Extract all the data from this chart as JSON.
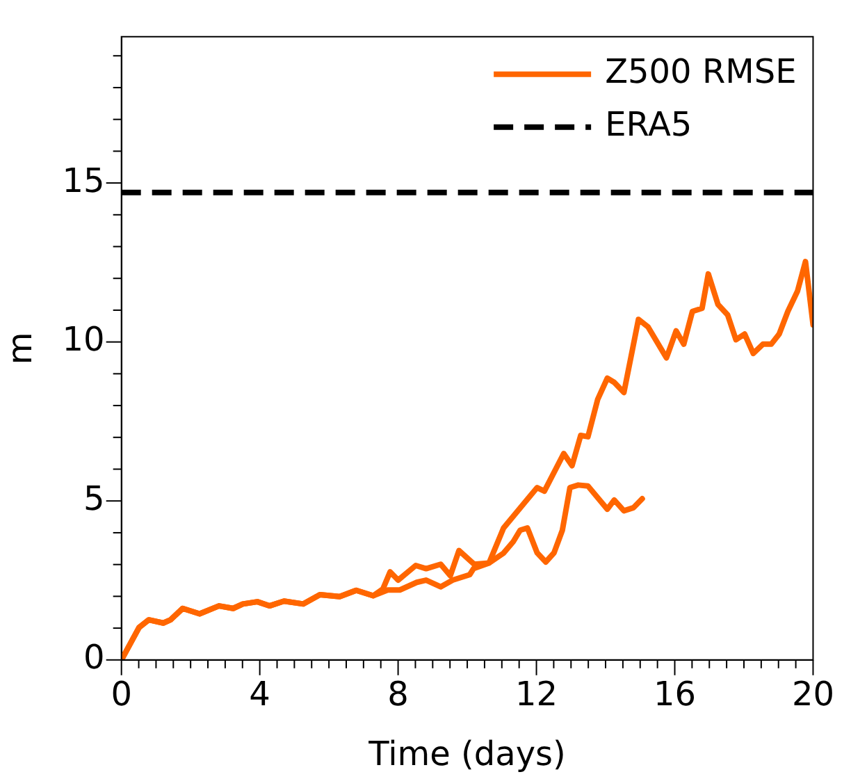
{
  "chart_data": {
    "type": "line",
    "xlabel": "Time (days)",
    "ylabel": "m",
    "xlim": [
      0,
      20
    ],
    "ylim": [
      0,
      19.6
    ],
    "xticks": [
      0,
      {
        "value": 0.5,
        "label": null
      },
      {
        "value": 1,
        "label": null
      },
      {
        "value": 1.5,
        "label": null
      },
      {
        "value": 2,
        "label": null
      },
      {
        "value": 2.5,
        "label": null
      },
      {
        "value": 3,
        "label": null
      },
      {
        "value": 3.5,
        "label": null
      },
      4,
      {
        "value": 4.5,
        "label": null
      },
      {
        "value": 5,
        "label": null
      },
      {
        "value": 5.5,
        "label": null
      },
      {
        "value": 6,
        "label": null
      },
      {
        "value": 6.5,
        "label": null
      },
      {
        "value": 7,
        "label": null
      },
      {
        "value": 7.5,
        "label": null
      },
      8,
      {
        "value": 8.5,
        "label": null
      },
      {
        "value": 9,
        "label": null
      },
      {
        "value": 9.5,
        "label": null
      },
      {
        "value": 10,
        "label": null
      },
      {
        "value": 10.5,
        "label": null
      },
      {
        "value": 11,
        "label": null
      },
      {
        "value": 11.5,
        "label": null
      },
      12,
      {
        "value": 12.5,
        "label": null
      },
      {
        "value": 13,
        "label": null
      },
      {
        "value": 13.5,
        "label": null
      },
      {
        "value": 14,
        "label": null
      },
      {
        "value": 14.5,
        "label": null
      },
      {
        "value": 15,
        "label": null
      },
      {
        "value": 15.5,
        "label": null
      },
      16,
      {
        "value": 16.5,
        "label": null
      },
      {
        "value": 17,
        "label": null
      },
      {
        "value": 17.5,
        "label": null
      },
      {
        "value": 18,
        "label": null
      },
      {
        "value": 18.5,
        "label": null
      },
      {
        "value": 19,
        "label": null
      },
      {
        "value": 19.5,
        "label": null
      },
      20
    ],
    "yticks": [
      0,
      {
        "value": 1,
        "label": null
      },
      {
        "value": 2,
        "label": null
      },
      {
        "value": 3,
        "label": null
      },
      {
        "value": 4,
        "label": null
      },
      5,
      {
        "value": 6,
        "label": null
      },
      {
        "value": 7,
        "label": null
      },
      {
        "value": 8,
        "label": null
      },
      {
        "value": 9,
        "label": null
      },
      10,
      {
        "value": 11,
        "label": null
      },
      {
        "value": 12,
        "label": null
      },
      {
        "value": 13,
        "label": null
      },
      {
        "value": 14,
        "label": null
      },
      15,
      {
        "value": 16,
        "label": null
      },
      {
        "value": 17,
        "label": null
      },
      {
        "value": 18,
        "label": null
      },
      {
        "value": 19,
        "label": null
      }
    ],
    "series": [
      {
        "name": "Z500 RMSE",
        "color": "#ff6600",
        "x": [
          0,
          0.51,
          0.79,
          1.21,
          1.42,
          1.77,
          2.26,
          2.82,
          3.23,
          3.51,
          3.93,
          4.28,
          4.7,
          5.26,
          5.74,
          6.31,
          6.79,
          7.28,
          7.56,
          7.77,
          8.0,
          8.51,
          8.81,
          9.23,
          9.51,
          9.76,
          10.2,
          10.63,
          11.05,
          12.02,
          12.23,
          12.79,
          13.03,
          13.28,
          13.49,
          13.77,
          14.05,
          14.25,
          14.53,
          14.95,
          15.23,
          15.76,
          16.04,
          16.26,
          16.51,
          16.79,
          16.97,
          17.25,
          17.53,
          17.77,
          18.02,
          18.27,
          18.55,
          18.79,
          19.02,
          19.27,
          19.55,
          19.78,
          20.0
        ],
        "values": [
          0,
          1.02,
          1.26,
          1.16,
          1.26,
          1.62,
          1.45,
          1.7,
          1.62,
          1.76,
          1.83,
          1.7,
          1.85,
          1.76,
          2.05,
          1.99,
          2.19,
          2.02,
          2.23,
          2.77,
          2.51,
          2.97,
          2.87,
          3.01,
          2.65,
          3.44,
          3.01,
          3.05,
          4.15,
          5.42,
          5.31,
          6.49,
          6.11,
          7.06,
          7.02,
          8.19,
          8.86,
          8.73,
          8.41,
          10.71,
          10.47,
          9.5,
          10.35,
          9.93,
          10.96,
          11.06,
          12.14,
          11.18,
          10.85,
          10.07,
          10.25,
          9.64,
          9.93,
          9.93,
          10.25,
          10.96,
          11.6,
          12.53,
          10.54
        ]
      },
      {
        "color": "#ff6600",
        "x": [
          0,
          0.51,
          0.79,
          1.21,
          1.42,
          1.77,
          2.26,
          2.82,
          3.23,
          3.51,
          3.93,
          4.28,
          4.7,
          5.26,
          5.74,
          6.31,
          6.79,
          7.28,
          7.7,
          8.05,
          8.54,
          8.81,
          9.23,
          9.58,
          10.07,
          10.18,
          10.63,
          11.05,
          11.33,
          11.53,
          11.74,
          12.02,
          12.27,
          12.51,
          12.75,
          12.97,
          13.21,
          13.49,
          14.05,
          14.25,
          14.53,
          14.81,
          15.06
        ],
        "values": [
          0,
          1.02,
          1.26,
          1.16,
          1.26,
          1.62,
          1.45,
          1.7,
          1.62,
          1.76,
          1.83,
          1.7,
          1.85,
          1.76,
          2.05,
          1.99,
          2.19,
          2.02,
          2.2,
          2.2,
          2.44,
          2.51,
          2.3,
          2.51,
          2.68,
          2.87,
          3.05,
          3.36,
          3.72,
          4.08,
          4.15,
          3.37,
          3.08,
          3.37,
          4.08,
          5.42,
          5.5,
          5.47,
          4.74,
          5.03,
          4.69,
          4.79,
          5.07
        ]
      }
    ],
    "ref_lines": [
      {
        "axis": "y",
        "value": 14.7,
        "label": "ERA5",
        "color": "#000000",
        "line_style": "dashed"
      }
    ],
    "legend": "top right",
    "grid": false,
    "marker": "none",
    "line_style": "solid"
  }
}
